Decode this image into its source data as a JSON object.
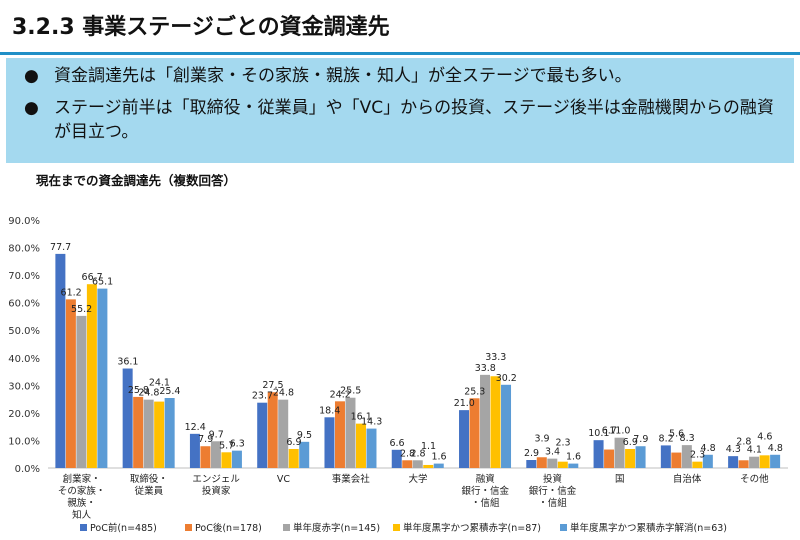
{
  "header": {
    "title": "3.2.3 事業ステージごとの資金調達先"
  },
  "summary": {
    "bullets": [
      "資金調達先は「創業家・その家族・親族・知人」が全ステージで最も多い。",
      "ステージ前半は「取締役・従業員」や「VC」からの投資、ステージ後半は金融機関からの融資が目立つ。"
    ]
  },
  "chart_title": "現在までの資金調達先（複数回答）",
  "chart_data": {
    "type": "bar",
    "title": "現在までの資金調達先（複数回答）",
    "categories": [
      [
        "創業家・",
        "その家族・",
        "親族・",
        "知人"
      ],
      [
        "取締役・",
        "従業員"
      ],
      [
        "エンジェル",
        "投資家"
      ],
      [
        "VC"
      ],
      [
        "事業会社"
      ],
      [
        "大学"
      ],
      [
        "融資",
        "銀行・信金",
        "・信組"
      ],
      [
        "投資",
        "銀行・信金",
        "・信組"
      ],
      [
        "国"
      ],
      [
        "自治体"
      ],
      [
        "その他"
      ]
    ],
    "series": [
      {
        "name": "PoC前(n=485)",
        "color": "#4472c4",
        "values": [
          77.7,
          36.1,
          12.4,
          23.7,
          18.4,
          6.6,
          21.0,
          2.9,
          10.1,
          8.2,
          4.3
        ]
      },
      {
        "name": "PoC後(n=178)",
        "color": "#ed7d31",
        "values": [
          61.2,
          25.8,
          7.9,
          27.5,
          24.2,
          2.8,
          25.3,
          3.9,
          6.7,
          5.6,
          2.8
        ]
      },
      {
        "name": "単年度赤字(n=145)",
        "color": "#a5a5a5",
        "values": [
          55.2,
          24.8,
          9.7,
          24.8,
          25.5,
          2.8,
          33.8,
          3.4,
          11.0,
          8.3,
          4.1
        ]
      },
      {
        "name": "単年度黒字かつ累積赤字(n=87)",
        "color": "#ffc000",
        "values": [
          66.7,
          24.1,
          5.7,
          6.9,
          16.1,
          1.1,
          33.3,
          2.3,
          6.9,
          2.3,
          4.6
        ]
      },
      {
        "name": "単年度黒字かつ累積赤字解消(n=63)",
        "color": "#5b9bd5",
        "values": [
          65.1,
          25.4,
          6.3,
          9.5,
          14.3,
          1.6,
          30.2,
          1.6,
          7.9,
          4.8,
          4.8
        ]
      }
    ],
    "ylim": [
      0,
      90
    ],
    "yticks": [
      "0.0%",
      "10.0%",
      "20.0%",
      "30.0%",
      "40.0%",
      "50.0%",
      "60.0%",
      "70.0%",
      "80.0%",
      "90.0%"
    ],
    "xlabel": "",
    "ylabel": "",
    "grid": false,
    "legend": "bottom"
  }
}
